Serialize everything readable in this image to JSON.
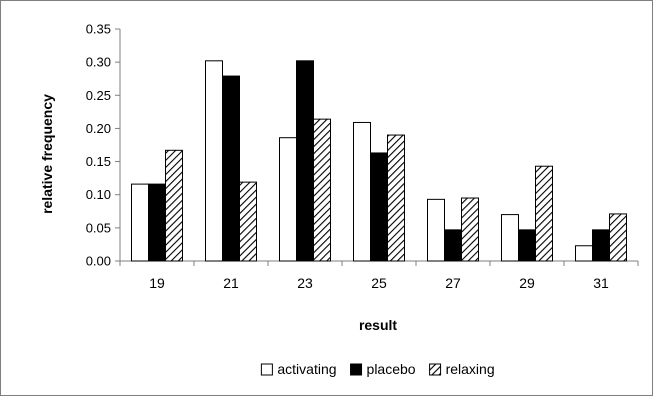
{
  "chart_data": {
    "type": "bar",
    "categories": [
      "19",
      "21",
      "23",
      "25",
      "27",
      "29",
      "31"
    ],
    "series": [
      {
        "name": "activating",
        "values": [
          0.116,
          0.302,
          0.186,
          0.209,
          0.093,
          0.07,
          0.023
        ],
        "color": "#ffffff",
        "pattern": "solid"
      },
      {
        "name": "placebo",
        "values": [
          0.116,
          0.279,
          0.302,
          0.163,
          0.047,
          0.047,
          0.047
        ],
        "color": "#000000",
        "pattern": "solid"
      },
      {
        "name": "relaxing",
        "values": [
          0.167,
          0.119,
          0.214,
          0.19,
          0.095,
          0.143,
          0.071
        ],
        "color": "#000000",
        "pattern": "diagonal-hatch"
      }
    ],
    "yticks": [
      "0.00",
      "0.05",
      "0.10",
      "0.15",
      "0.20",
      "0.25",
      "0.30",
      "0.35"
    ],
    "ylim": [
      0,
      0.35
    ],
    "xlabel": "result",
    "ylabel": "relative frequency",
    "legend_position": "bottom",
    "grid": false
  }
}
